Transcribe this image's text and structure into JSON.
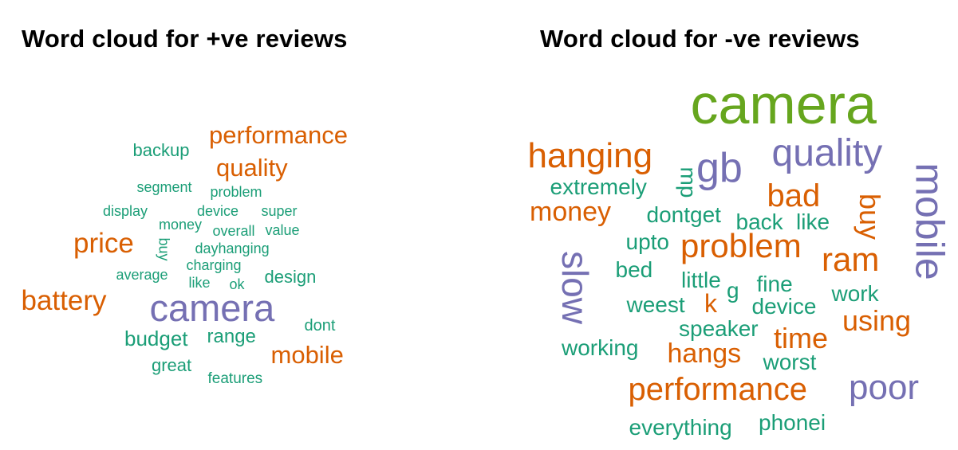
{
  "palette": {
    "green": "#1b9e77",
    "orange": "#d95f02",
    "purple": "#7570b3",
    "lime": "#66a61e"
  },
  "clouds": [
    {
      "id": "pos",
      "title": "Word cloud for +ve reviews",
      "words": [
        {
          "text": "camera",
          "weight": 10,
          "color": "purple"
        },
        {
          "text": "performance",
          "weight": 5,
          "color": "orange"
        },
        {
          "text": "quality",
          "weight": 5,
          "color": "orange"
        },
        {
          "text": "price",
          "weight": 6,
          "color": "orange"
        },
        {
          "text": "battery",
          "weight": 6,
          "color": "orange"
        },
        {
          "text": "mobile",
          "weight": 5,
          "color": "orange"
        },
        {
          "text": "backup",
          "weight": 3,
          "color": "green"
        },
        {
          "text": "segment",
          "weight": 2,
          "color": "green"
        },
        {
          "text": "problem",
          "weight": 2,
          "color": "green"
        },
        {
          "text": "display",
          "weight": 2,
          "color": "green"
        },
        {
          "text": "device",
          "weight": 2,
          "color": "green"
        },
        {
          "text": "super",
          "weight": 2,
          "color": "green"
        },
        {
          "text": "money",
          "weight": 2,
          "color": "green"
        },
        {
          "text": "overall",
          "weight": 2,
          "color": "green"
        },
        {
          "text": "value",
          "weight": 2,
          "color": "green"
        },
        {
          "text": "buy",
          "weight": 2,
          "color": "green",
          "rotate": true
        },
        {
          "text": "dayhanging",
          "weight": 2,
          "color": "green"
        },
        {
          "text": "charging",
          "weight": 2,
          "color": "green"
        },
        {
          "text": "average",
          "weight": 2,
          "color": "green"
        },
        {
          "text": "design",
          "weight": 2,
          "color": "green"
        },
        {
          "text": "like",
          "weight": 2,
          "color": "green"
        },
        {
          "text": "ok",
          "weight": 2,
          "color": "green"
        },
        {
          "text": "budget",
          "weight": 3,
          "color": "green"
        },
        {
          "text": "range",
          "weight": 3,
          "color": "green"
        },
        {
          "text": "dont",
          "weight": 2,
          "color": "green"
        },
        {
          "text": "great",
          "weight": 2,
          "color": "green"
        },
        {
          "text": "features",
          "weight": 2,
          "color": "green"
        }
      ]
    },
    {
      "id": "neg",
      "title": "Word cloud for -ve reviews",
      "words": [
        {
          "text": "camera",
          "weight": 10,
          "color": "lime"
        },
        {
          "text": "hanging",
          "weight": 6,
          "color": "orange"
        },
        {
          "text": "gb",
          "weight": 7,
          "color": "purple"
        },
        {
          "text": "quality",
          "weight": 7,
          "color": "purple"
        },
        {
          "text": "mobile",
          "weight": 7,
          "color": "purple",
          "rotate": true
        },
        {
          "text": "mp",
          "weight": 3,
          "color": "green",
          "rotate": true
        },
        {
          "text": "extremely",
          "weight": 3,
          "color": "green"
        },
        {
          "text": "bad",
          "weight": 6,
          "color": "orange"
        },
        {
          "text": "buy",
          "weight": 4,
          "color": "orange",
          "rotate": true
        },
        {
          "text": "money",
          "weight": 4,
          "color": "orange"
        },
        {
          "text": "dontget",
          "weight": 3,
          "color": "green"
        },
        {
          "text": "back",
          "weight": 3,
          "color": "green"
        },
        {
          "text": "like",
          "weight": 3,
          "color": "green"
        },
        {
          "text": "slow",
          "weight": 6,
          "color": "purple",
          "rotate": true
        },
        {
          "text": "upto",
          "weight": 3,
          "color": "green"
        },
        {
          "text": "problem",
          "weight": 6,
          "color": "orange"
        },
        {
          "text": "ram",
          "weight": 6,
          "color": "orange"
        },
        {
          "text": "bed",
          "weight": 3,
          "color": "green"
        },
        {
          "text": "little",
          "weight": 3,
          "color": "green"
        },
        {
          "text": "g",
          "weight": 3,
          "color": "green"
        },
        {
          "text": "fine",
          "weight": 3,
          "color": "green"
        },
        {
          "text": "work",
          "weight": 3,
          "color": "green"
        },
        {
          "text": "weest",
          "weight": 3,
          "color": "green"
        },
        {
          "text": "k",
          "weight": 4,
          "color": "orange"
        },
        {
          "text": "device",
          "weight": 3,
          "color": "green"
        },
        {
          "text": "using",
          "weight": 4,
          "color": "orange"
        },
        {
          "text": "speaker",
          "weight": 3,
          "color": "green"
        },
        {
          "text": "time",
          "weight": 4,
          "color": "orange"
        },
        {
          "text": "working",
          "weight": 3,
          "color": "green"
        },
        {
          "text": "hangs",
          "weight": 4,
          "color": "orange"
        },
        {
          "text": "worst",
          "weight": 3,
          "color": "green"
        },
        {
          "text": "performance",
          "weight": 5,
          "color": "orange"
        },
        {
          "text": "poor",
          "weight": 6,
          "color": "purple"
        },
        {
          "text": "everything",
          "weight": 3,
          "color": "green"
        },
        {
          "text": "phonei",
          "weight": 3,
          "color": "green"
        }
      ]
    }
  ]
}
